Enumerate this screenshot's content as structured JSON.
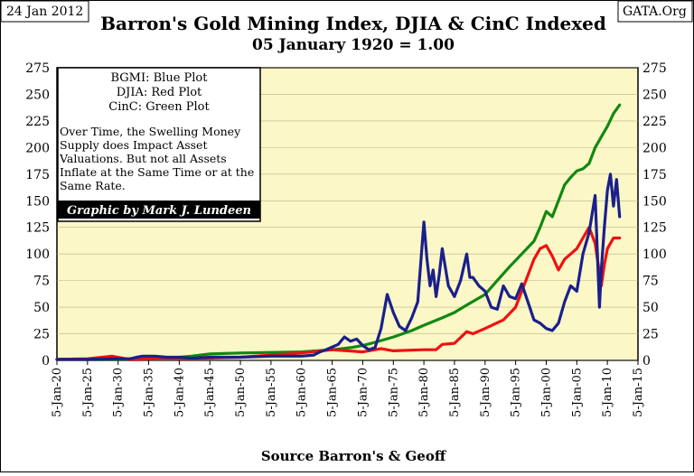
{
  "date_label": "24 Jan 2012",
  "source_label": "GATA.Org",
  "chart_data": {
    "type": "line",
    "title": "Barron's Gold Mining Index, DJIA & CinC Indexed",
    "subtitle": "05 January 1920 = 1.00",
    "xlabel": "Source Barron's & Geoff",
    "ylabel": "",
    "ylim": [
      0,
      275
    ],
    "xlim": [
      1920,
      2015
    ],
    "y_ticks": [
      "0",
      "25",
      "50",
      "75",
      "100",
      "125",
      "150",
      "175",
      "200",
      "225",
      "250",
      "275"
    ],
    "x_ticks": [
      "5-Jan-20",
      "5-Jan-25",
      "5-Jan-30",
      "5-Jan-35",
      "5-Jan-40",
      "5-Jan-45",
      "5-Jan-50",
      "5-Jan-55",
      "5-Jan-60",
      "5-Jan-65",
      "5-Jan-70",
      "5-Jan-75",
      "5-Jan-80",
      "5-Jan-85",
      "5-Jan-90",
      "5-Jan-95",
      "5-Jan-00",
      "5-Jan-05",
      "5-Jan-10",
      "5-Jan-15"
    ],
    "legend": {
      "lines": [
        "BGMI: Blue Plot",
        "DJIA: Red Plot",
        "CinC: Green Plot"
      ],
      "note": "Over Time, the Swelling Money Supply does Impact Asset Valuations.  But not all Assets Inflate at the Same Time or at the Same Rate.",
      "credit": "Graphic by Mark J. Lundeen"
    },
    "series": [
      {
        "name": "BGMI",
        "color": "#1a1f8c",
        "points": [
          [
            1920,
            1
          ],
          [
            1925,
            1
          ],
          [
            1930,
            1.5
          ],
          [
            1932,
            1.5
          ],
          [
            1933,
            3
          ],
          [
            1934,
            4
          ],
          [
            1936,
            4
          ],
          [
            1938,
            3
          ],
          [
            1940,
            3
          ],
          [
            1942,
            2
          ],
          [
            1945,
            3
          ],
          [
            1950,
            3
          ],
          [
            1955,
            4
          ],
          [
            1960,
            4
          ],
          [
            1962,
            5
          ],
          [
            1963,
            8
          ],
          [
            1964,
            10
          ],
          [
            1966,
            15
          ],
          [
            1967,
            22
          ],
          [
            1968,
            18
          ],
          [
            1969,
            20
          ],
          [
            1970,
            14
          ],
          [
            1971,
            10
          ],
          [
            1972,
            12
          ],
          [
            1973,
            30
          ],
          [
            1974,
            62
          ],
          [
            1975,
            45
          ],
          [
            1976,
            32
          ],
          [
            1977,
            28
          ],
          [
            1978,
            40
          ],
          [
            1979,
            55
          ],
          [
            1980,
            130
          ],
          [
            1980.5,
            95
          ],
          [
            1981,
            70
          ],
          [
            1981.5,
            85
          ],
          [
            1982,
            60
          ],
          [
            1982.5,
            80
          ],
          [
            1983,
            105
          ],
          [
            1984,
            70
          ],
          [
            1985,
            60
          ],
          [
            1986,
            75
          ],
          [
            1987,
            100
          ],
          [
            1987.5,
            78
          ],
          [
            1988,
            78
          ],
          [
            1989,
            70
          ],
          [
            1990,
            65
          ],
          [
            1991,
            50
          ],
          [
            1992,
            48
          ],
          [
            1993,
            70
          ],
          [
            1994,
            60
          ],
          [
            1995,
            58
          ],
          [
            1996,
            72
          ],
          [
            1997,
            55
          ],
          [
            1998,
            38
          ],
          [
            1999,
            35
          ],
          [
            2000,
            30
          ],
          [
            2001,
            28
          ],
          [
            2002,
            35
          ],
          [
            2003,
            55
          ],
          [
            2004,
            70
          ],
          [
            2005,
            65
          ],
          [
            2006,
            100
          ],
          [
            2007,
            120
          ],
          [
            2008,
            155
          ],
          [
            2008.7,
            50
          ],
          [
            2009,
            85
          ],
          [
            2009.5,
            125
          ],
          [
            2010,
            160
          ],
          [
            2010.5,
            175
          ],
          [
            2011,
            145
          ],
          [
            2011.5,
            170
          ],
          [
            2012,
            135
          ]
        ]
      },
      {
        "name": "DJIA",
        "color": "#ee1111",
        "points": [
          [
            1920,
            1
          ],
          [
            1925,
            1.5
          ],
          [
            1929,
            4
          ],
          [
            1932,
            0.8
          ],
          [
            1935,
            1.5
          ],
          [
            1937,
            2
          ],
          [
            1942,
            1.5
          ],
          [
            1946,
            2.5
          ],
          [
            1950,
            3
          ],
          [
            1955,
            5
          ],
          [
            1960,
            7
          ],
          [
            1965,
            10
          ],
          [
            1970,
            8
          ],
          [
            1973,
            11
          ],
          [
            1975,
            9
          ],
          [
            1980,
            10
          ],
          [
            1982,
            10
          ],
          [
            1983,
            15
          ],
          [
            1985,
            16
          ],
          [
            1987,
            27
          ],
          [
            1988,
            25
          ],
          [
            1990,
            30
          ],
          [
            1993,
            38
          ],
          [
            1995,
            50
          ],
          [
            1996,
            65
          ],
          [
            1997,
            80
          ],
          [
            1998,
            95
          ],
          [
            1999,
            105
          ],
          [
            2000,
            108
          ],
          [
            2001,
            98
          ],
          [
            2002,
            85
          ],
          [
            2003,
            95
          ],
          [
            2004,
            100
          ],
          [
            2005,
            105
          ],
          [
            2006,
            115
          ],
          [
            2007,
            125
          ],
          [
            2008,
            110
          ],
          [
            2009,
            70
          ],
          [
            2009.5,
            90
          ],
          [
            2010,
            105
          ],
          [
            2011,
            115
          ],
          [
            2012,
            115
          ]
        ]
      },
      {
        "name": "CinC",
        "color": "#118811",
        "points": [
          [
            1920,
            1
          ],
          [
            1925,
            1
          ],
          [
            1930,
            1
          ],
          [
            1935,
            1.5
          ],
          [
            1940,
            3
          ],
          [
            1942,
            4
          ],
          [
            1945,
            6
          ],
          [
            1950,
            7
          ],
          [
            1955,
            7.5
          ],
          [
            1960,
            8
          ],
          [
            1965,
            10
          ],
          [
            1968,
            12
          ],
          [
            1970,
            14
          ],
          [
            1972,
            17
          ],
          [
            1975,
            22
          ],
          [
            1978,
            28
          ],
          [
            1980,
            33
          ],
          [
            1983,
            40
          ],
          [
            1985,
            45
          ],
          [
            1987,
            52
          ],
          [
            1990,
            62
          ],
          [
            1992,
            75
          ],
          [
            1994,
            88
          ],
          [
            1996,
            100
          ],
          [
            1998,
            112
          ],
          [
            1999,
            125
          ],
          [
            2000,
            140
          ],
          [
            2001,
            135
          ],
          [
            2002,
            150
          ],
          [
            2003,
            165
          ],
          [
            2004,
            172
          ],
          [
            2005,
            178
          ],
          [
            2006,
            180
          ],
          [
            2007,
            185
          ],
          [
            2008,
            200
          ],
          [
            2009,
            210
          ],
          [
            2010,
            220
          ],
          [
            2011,
            232
          ],
          [
            2012,
            240
          ]
        ]
      }
    ]
  }
}
